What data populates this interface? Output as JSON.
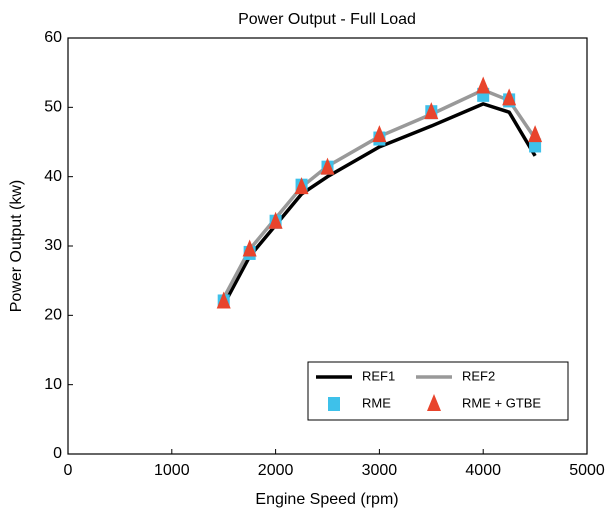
{
  "chart_data": {
    "type": "line",
    "title": "Power Output - Full Load",
    "x_label": "Engine Speed (rpm)",
    "y_label": "Power Output (kw)",
    "x": [
      1500,
      1750,
      2000,
      2250,
      2500,
      3000,
      3500,
      4000,
      4250,
      4500
    ],
    "series": [
      {
        "name": "REF1",
        "color": "#000000",
        "style": "line",
        "values": [
          21.5,
          28.5,
          33,
          37.5,
          40,
          44.3,
          47.3,
          50.5,
          49.3,
          43
        ]
      },
      {
        "name": "REF2",
        "color": "#999999",
        "style": "line",
        "values": [
          22.5,
          29.5,
          34,
          38.5,
          41.5,
          45.8,
          49,
          52.5,
          51,
          45.5
        ]
      },
      {
        "name": "RME",
        "color": "#3ec1ea",
        "style": "square",
        "values": [
          22,
          29,
          33.5,
          38.7,
          41.3,
          45.5,
          49.3,
          51.8,
          51,
          44.5
        ]
      },
      {
        "name": "RME + GTBE",
        "color": "#e8442c",
        "style": "triangle",
        "values": [
          22,
          29.5,
          33.5,
          38.5,
          41.3,
          46,
          49.3,
          53,
          51.3,
          46
        ]
      }
    ],
    "xlim": [
      0,
      5000
    ],
    "xticks": [
      0,
      1000,
      2000,
      3000,
      4000,
      5000
    ],
    "ylim": [
      0,
      60
    ],
    "yticks": [
      0,
      10,
      20,
      30,
      40,
      50,
      60
    ],
    "grid": false,
    "legend": "lower right"
  }
}
